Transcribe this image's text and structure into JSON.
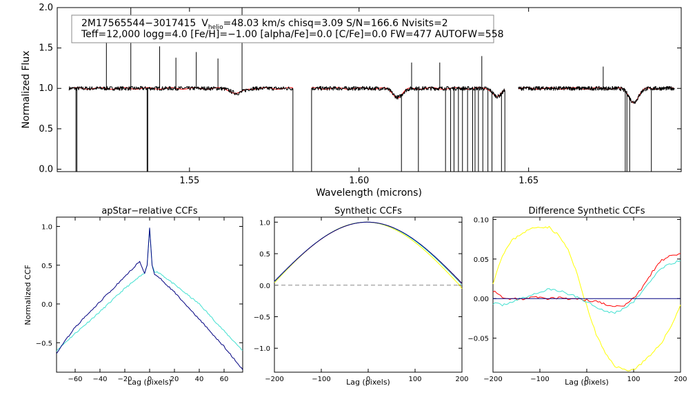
{
  "chart_data": [
    {
      "type": "line",
      "id": "spectrum",
      "title": "",
      "xlabel": "Wavelength (microns)",
      "ylabel": "Normalized Flux",
      "xlim": [
        1.511,
        1.695
      ],
      "ylim": [
        -0.03,
        2.0
      ],
      "xticks": [
        "1.55",
        "1.60",
        "1.65"
      ],
      "xtick_values": [
        1.55,
        1.6,
        1.65
      ],
      "yticks": [
        "0.0",
        "0.5",
        "1.0",
        "1.5",
        "2.0"
      ],
      "ytick_values": [
        0.0,
        0.5,
        1.0,
        1.5,
        2.0
      ],
      "annotation": {
        "star_id": "2M17565544−3017415",
        "vhelio_prefix": "V",
        "vhelio_sub": "helio",
        "vhelio_rest": "=48.03 km/s  chisq=3.09  S/N=166.6  Nvisits=2",
        "line2": "Teff=12,000 logg=4.0 [Fe/H]=−1.00 [alpha/Fe]=0.0 [C/Fe]=0.0 FW=477 AUTOFW=558"
      },
      "chips": [
        [
          1.5145,
          1.5805
        ],
        [
          1.586,
          1.643
        ],
        [
          1.647,
          1.693
        ]
      ],
      "broad_features": [
        {
          "center": 1.564,
          "width": 0.0025,
          "depth": 0.06
        },
        {
          "center": 1.6114,
          "width": 0.002,
          "depth": 0.11
        },
        {
          "center": 1.6408,
          "width": 0.0018,
          "depth": 0.1
        },
        {
          "center": 1.681,
          "width": 0.002,
          "depth": 0.17
        }
      ],
      "emission_spikes": [
        {
          "x": 1.5255,
          "peak": 1.66
        },
        {
          "x": 1.5327,
          "peak": 2.0
        },
        {
          "x": 1.5412,
          "peak": 1.52
        },
        {
          "x": 1.546,
          "peak": 1.38
        },
        {
          "x": 1.552,
          "peak": 1.45
        },
        {
          "x": 1.5584,
          "peak": 1.37
        },
        {
          "x": 1.5655,
          "peak": 2.0
        },
        {
          "x": 1.6155,
          "peak": 1.32
        },
        {
          "x": 1.6238,
          "peak": 1.32
        },
        {
          "x": 1.6362,
          "peak": 1.4
        },
        {
          "x": 1.672,
          "peak": 1.27
        }
      ],
      "dropouts": [
        1.5165,
        1.5168,
        1.5375,
        1.5377,
        1.6125,
        1.6175,
        1.6255,
        1.627,
        1.628,
        1.6293,
        1.6305,
        1.632,
        1.6335,
        1.6342,
        1.6352,
        1.6365,
        1.638,
        1.6392,
        1.642,
        1.6785,
        1.679,
        1.6798,
        1.6862
      ],
      "series": [
        {
          "name": "observed",
          "color": "#000000"
        },
        {
          "name": "model",
          "color": "#ff0000"
        }
      ]
    },
    {
      "type": "line",
      "id": "apstar_ccf",
      "title": "apStar−relative CCFs",
      "xlabel": "Lag (pixels)",
      "ylabel": "Normalized CCF",
      "xlim": [
        -75,
        75
      ],
      "ylim": [
        -0.88,
        1.12
      ],
      "xticks": [
        "−60",
        "−40",
        "−20",
        "0",
        "20",
        "40",
        "60"
      ],
      "xtick_values": [
        -60,
        -40,
        -20,
        0,
        20,
        40,
        60
      ],
      "yticks": [
        "−0.5",
        "0.0",
        "0.5",
        "1.0"
      ],
      "ytick_values": [
        -0.5,
        0.0,
        0.5,
        1.0
      ],
      "series": [
        {
          "name": "navy",
          "color": "#000080",
          "x": [
            -75,
            -60,
            -40,
            -20,
            -8,
            -4,
            -2,
            0,
            2,
            4,
            8,
            20,
            40,
            60,
            75
          ],
          "y": [
            -0.63,
            -0.3,
            0.03,
            0.35,
            0.55,
            0.4,
            0.5,
            0.98,
            0.5,
            0.38,
            0.34,
            0.15,
            -0.2,
            -0.55,
            -0.85
          ]
        },
        {
          "name": "turquoise",
          "color": "#40e0d0",
          "x": [
            -75,
            -60,
            -40,
            -20,
            -8,
            -4,
            -2,
            0,
            2,
            4,
            8,
            20,
            40,
            60,
            75
          ],
          "y": [
            -0.6,
            -0.38,
            -0.1,
            0.2,
            0.35,
            0.4,
            0.5,
            0.98,
            0.5,
            0.42,
            0.4,
            0.25,
            0.0,
            -0.35,
            -0.6
          ]
        }
      ]
    },
    {
      "type": "line",
      "id": "synthetic_ccf",
      "title": "Synthetic CCFs",
      "xlabel": "Lag (pixels)",
      "ylabel": "",
      "xlim": [
        -200,
        200
      ],
      "ylim": [
        -1.38,
        1.08
      ],
      "xticks": [
        "−200",
        "−100",
        "0",
        "100",
        "200"
      ],
      "xtick_values": [
        -200,
        -100,
        0,
        100,
        200
      ],
      "yticks": [
        "−1.0",
        "−0.5",
        "0.0",
        "0.5",
        "1.0"
      ],
      "ytick_values": [
        -1.0,
        -0.5,
        0.0,
        0.5,
        1.0
      ],
      "baseline": 0.0,
      "series": [
        {
          "name": "yellow",
          "color": "#ffff00",
          "center": -5,
          "half_period": 200,
          "gain": 1.03
        },
        {
          "name": "red",
          "color": "#ff0000",
          "center": -2,
          "half_period": 205,
          "gain": 1.0
        },
        {
          "name": "turquoise",
          "color": "#40e0d0",
          "center": -3,
          "half_period": 204,
          "gain": 1.0
        },
        {
          "name": "navy",
          "color": "#000080",
          "center": -2,
          "half_period": 206,
          "gain": 0.99
        }
      ]
    },
    {
      "type": "line",
      "id": "diff_ccf",
      "title": "Difference Synthetic CCFs",
      "xlabel": "Lag (pixels)",
      "ylabel": "",
      "xlim": [
        -200,
        200
      ],
      "ylim": [
        -0.093,
        0.103
      ],
      "xticks": [
        "−200",
        "−100",
        "0",
        "100",
        "200"
      ],
      "xtick_values": [
        -200,
        -100,
        0,
        100,
        200
      ],
      "yticks": [
        "−0.05",
        "0.00",
        "0.05",
        "0.10"
      ],
      "ytick_values": [
        -0.05,
        0.0,
        0.05,
        0.1
      ],
      "series": [
        {
          "name": "yellow",
          "color": "#ffff00",
          "x": [
            -200,
            -180,
            -160,
            -140,
            -120,
            -100,
            -80,
            -60,
            -40,
            -20,
            -10,
            0,
            20,
            40,
            60,
            80,
            100,
            120,
            140,
            160,
            180,
            200
          ],
          "y": [
            0.02,
            0.055,
            0.073,
            0.082,
            0.088,
            0.091,
            0.09,
            0.08,
            0.062,
            0.03,
            0.01,
            -0.01,
            -0.045,
            -0.07,
            -0.085,
            -0.09,
            -0.09,
            -0.08,
            -0.07,
            -0.055,
            -0.035,
            -0.008
          ]
        },
        {
          "name": "red",
          "color": "#ff0000",
          "x": [
            -200,
            -180,
            -160,
            -140,
            -120,
            -100,
            -80,
            -60,
            -40,
            -20,
            0,
            20,
            40,
            60,
            80,
            100,
            120,
            140,
            160,
            180,
            200
          ],
          "y": [
            0.01,
            0.001,
            0.0,
            -0.001,
            0.002,
            0.001,
            0.0,
            0.001,
            -0.001,
            0.0,
            -0.002,
            -0.004,
            -0.007,
            -0.011,
            -0.008,
            0.0,
            0.015,
            0.034,
            0.048,
            0.055,
            0.057
          ]
        },
        {
          "name": "turquoise",
          "color": "#40e0d0",
          "x": [
            -200,
            -180,
            -160,
            -140,
            -120,
            -100,
            -80,
            -60,
            -40,
            -20,
            0,
            20,
            40,
            60,
            80,
            100,
            120,
            140,
            160,
            180,
            200
          ],
          "y": [
            -0.006,
            -0.008,
            -0.004,
            0.0,
            0.004,
            0.008,
            0.012,
            0.01,
            0.006,
            0.002,
            -0.004,
            -0.01,
            -0.016,
            -0.018,
            -0.012,
            -0.004,
            0.01,
            0.026,
            0.038,
            0.044,
            0.048
          ]
        },
        {
          "name": "navy",
          "color": "#000080",
          "x": [
            -200,
            200
          ],
          "y": [
            0.0,
            0.0
          ]
        }
      ]
    }
  ]
}
